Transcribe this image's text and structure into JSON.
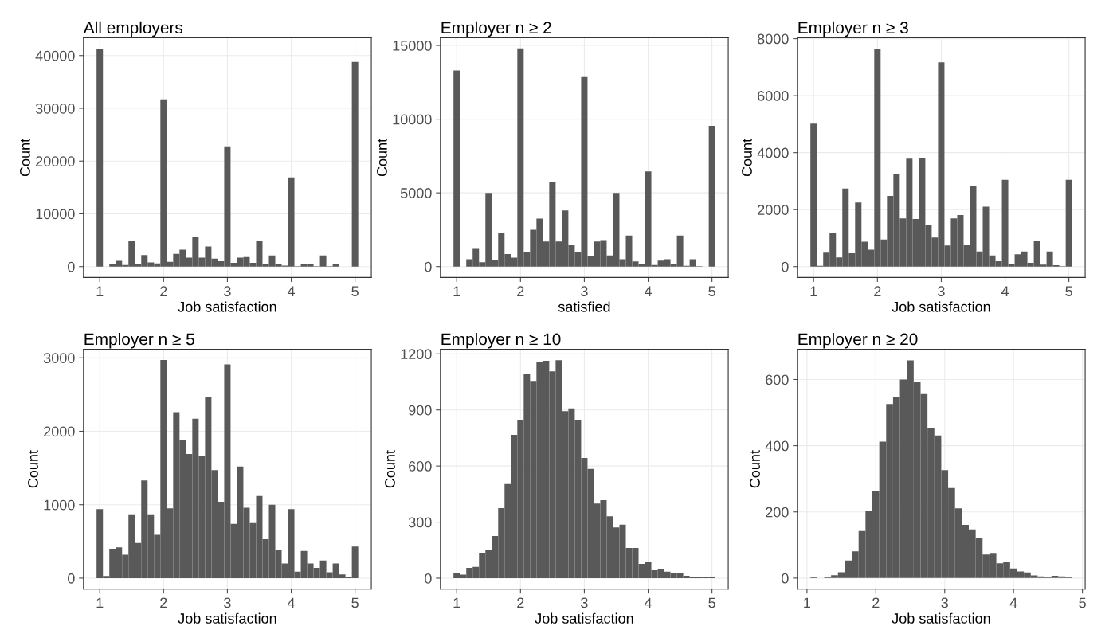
{
  "chart_data": [
    {
      "type": "histogram",
      "title": "All employers",
      "xlabel": "Job satisfaction",
      "ylabel": "Count",
      "color": "#595959",
      "grid": true,
      "xlim": [
        0.745,
        5.255
      ],
      "xticks": [
        1,
        2,
        3,
        4,
        5
      ],
      "ylim": [
        -2065,
        43365
      ],
      "yticks": [
        0,
        10000,
        20000,
        30000,
        40000
      ],
      "bins": [
        0.95,
        1.05,
        1.15,
        1.25,
        1.35,
        1.45,
        1.55,
        1.65,
        1.75,
        1.85,
        1.95,
        2.05,
        2.15,
        2.25,
        2.35,
        2.45,
        2.55,
        2.65,
        2.75,
        2.85,
        2.95,
        3.05,
        3.15,
        3.25,
        3.35,
        3.45,
        3.55,
        3.65,
        3.75,
        3.85,
        3.95,
        4.05,
        4.15,
        4.25,
        4.35,
        4.45,
        4.55,
        4.65,
        4.75,
        4.85,
        4.95,
        5.05
      ],
      "values": [
        41300,
        0,
        500,
        1100,
        300,
        4900,
        400,
        2200,
        800,
        600,
        31700,
        900,
        2400,
        3200,
        1700,
        5600,
        1700,
        3800,
        1500,
        1000,
        22800,
        700,
        1700,
        1800,
        700,
        4900,
        500,
        2100,
        400,
        200,
        16900,
        50,
        400,
        500,
        50,
        2100,
        50,
        500,
        0,
        0,
        38800
      ]
    },
    {
      "type": "histogram",
      "title": "Employer n ≥ 2",
      "xlabel": "satisfied",
      "ylabel": "Count",
      "color": "#595959",
      "grid": true,
      "xlim": [
        0.745,
        5.255
      ],
      "xticks": [
        1,
        2,
        3,
        4,
        5
      ],
      "ylim": [
        -739,
        15519
      ],
      "yticks": [
        0,
        5000,
        10000,
        15000
      ],
      "bins": [
        0.95,
        1.05,
        1.15,
        1.25,
        1.35,
        1.45,
        1.55,
        1.65,
        1.75,
        1.85,
        1.95,
        2.05,
        2.15,
        2.25,
        2.35,
        2.45,
        2.55,
        2.65,
        2.75,
        2.85,
        2.95,
        3.05,
        3.15,
        3.25,
        3.35,
        3.45,
        3.55,
        3.65,
        3.75,
        3.85,
        3.95,
        4.05,
        4.15,
        4.25,
        4.35,
        4.45,
        4.55,
        4.65,
        4.75,
        4.85,
        4.95,
        5.05
      ],
      "values": [
        13300,
        0,
        500,
        1200,
        300,
        5000,
        450,
        2300,
        850,
        600,
        14800,
        950,
        2500,
        3250,
        1700,
        5750,
        1700,
        3800,
        1500,
        1000,
        12850,
        700,
        1700,
        1800,
        750,
        5000,
        500,
        2100,
        350,
        200,
        6450,
        100,
        400,
        500,
        150,
        2100,
        50,
        500,
        20,
        0,
        9550
      ]
    },
    {
      "type": "histogram",
      "title": "Employer n ≥ 3",
      "xlabel": "Job satisfaction",
      "ylabel": "Count",
      "color": "#595959",
      "grid": true,
      "xlim": [
        0.745,
        5.255
      ],
      "xticks": [
        1,
        2,
        3,
        4,
        5
      ],
      "ylim": [
        -382,
        8032
      ],
      "yticks": [
        0,
        2000,
        4000,
        6000,
        8000
      ],
      "bins": [
        0.95,
        1.05,
        1.15,
        1.25,
        1.35,
        1.45,
        1.55,
        1.65,
        1.75,
        1.85,
        1.95,
        2.05,
        2.15,
        2.25,
        2.35,
        2.45,
        2.55,
        2.65,
        2.75,
        2.85,
        2.95,
        3.05,
        3.15,
        3.25,
        3.35,
        3.45,
        3.55,
        3.65,
        3.75,
        3.85,
        3.95,
        4.05,
        4.15,
        4.25,
        4.35,
        4.45,
        4.55,
        4.65,
        4.75,
        4.85,
        4.95,
        5.05
      ],
      "values": [
        5020,
        30,
        490,
        1170,
        320,
        2740,
        470,
        2250,
        870,
        590,
        7650,
        950,
        2480,
        3240,
        1690,
        3790,
        1670,
        3820,
        1460,
        1020,
        7170,
        740,
        1690,
        1810,
        750,
        2820,
        530,
        2100,
        390,
        190,
        3050,
        100,
        430,
        530,
        130,
        910,
        70,
        530,
        50,
        10,
        3050
      ]
    },
    {
      "type": "histogram",
      "title": "Employer n ≥ 5",
      "xlabel": "Job satisfaction",
      "ylabel": "Count",
      "color": "#595959",
      "grid": true,
      "xlim": [
        0.745,
        5.255
      ],
      "xticks": [
        1,
        2,
        3,
        4,
        5
      ],
      "ylim": [
        -148,
        3115
      ],
      "yticks": [
        0,
        1000,
        2000,
        3000
      ],
      "bins": [
        0.95,
        1.05,
        1.15,
        1.25,
        1.35,
        1.45,
        1.55,
        1.65,
        1.75,
        1.85,
        1.95,
        2.05,
        2.15,
        2.25,
        2.35,
        2.45,
        2.55,
        2.65,
        2.75,
        2.85,
        2.95,
        3.05,
        3.15,
        3.25,
        3.35,
        3.45,
        3.55,
        3.65,
        3.75,
        3.85,
        3.95,
        4.05,
        4.15,
        4.25,
        4.35,
        4.45,
        4.55,
        4.65,
        4.75,
        4.85,
        4.95,
        5.05
      ],
      "values": [
        940,
        30,
        400,
        420,
        320,
        870,
        480,
        1330,
        870,
        590,
        2970,
        950,
        2260,
        1880,
        1690,
        2170,
        1660,
        2470,
        1470,
        1040,
        2910,
        740,
        1520,
        960,
        750,
        1120,
        530,
        1000,
        390,
        200,
        940,
        90,
        370,
        200,
        140,
        240,
        80,
        200,
        50,
        10,
        430
      ]
    },
    {
      "type": "histogram",
      "title": "Employer n ≥ 10",
      "xlabel": "Job satisfaction",
      "ylabel": "Count",
      "color": "#595959",
      "grid": true,
      "xlim": [
        0.745,
        5.255
      ],
      "xticks": [
        1,
        2,
        3,
        4,
        5
      ],
      "ylim": [
        -58,
        1224
      ],
      "yticks": [
        0,
        300,
        600,
        900,
        1200
      ],
      "bins": [
        0.95,
        1.05,
        1.15,
        1.25,
        1.35,
        1.45,
        1.55,
        1.65,
        1.75,
        1.85,
        1.95,
        2.05,
        2.15,
        2.25,
        2.35,
        2.45,
        2.55,
        2.65,
        2.75,
        2.85,
        2.95,
        3.05,
        3.15,
        3.25,
        3.35,
        3.45,
        3.55,
        3.65,
        3.75,
        3.85,
        3.95,
        4.05,
        4.15,
        4.25,
        4.35,
        4.45,
        4.55,
        4.65,
        4.75,
        4.85,
        4.95,
        5.05
      ],
      "values": [
        26,
        19,
        55,
        61,
        136,
        153,
        226,
        375,
        504,
        767,
        848,
        1092,
        1055,
        1155,
        1163,
        1106,
        1166,
        893,
        908,
        848,
        643,
        585,
        399,
        417,
        331,
        271,
        286,
        162,
        162,
        77,
        86,
        42,
        47,
        35,
        29,
        29,
        13,
        7,
        4,
        4,
        4
      ]
    },
    {
      "type": "histogram",
      "title": "Employer n ≥ 20",
      "xlabel": "Job satisfaction",
      "ylabel": "Count",
      "color": "#595959",
      "grid": true,
      "xlim": [
        0.86,
        5.04
      ],
      "xticks": [
        1,
        2,
        3,
        4,
        5
      ],
      "ylim": [
        -33,
        691
      ],
      "yticks": [
        0,
        200,
        400,
        600
      ],
      "bins": [
        1.05,
        1.15,
        1.25,
        1.35,
        1.45,
        1.55,
        1.65,
        1.75,
        1.85,
        1.95,
        2.05,
        2.15,
        2.25,
        2.35,
        2.45,
        2.55,
        2.65,
        2.75,
        2.85,
        2.95,
        3.05,
        3.15,
        3.25,
        3.35,
        3.45,
        3.55,
        3.65,
        3.75,
        3.85,
        3.95,
        4.05,
        4.15,
        4.25,
        4.35,
        4.45,
        4.55,
        4.65,
        4.75,
        4.85
      ],
      "values": [
        2,
        0,
        3,
        9,
        18,
        53,
        81,
        142,
        204,
        263,
        412,
        526,
        547,
        600,
        658,
        593,
        556,
        453,
        431,
        326,
        272,
        211,
        161,
        147,
        122,
        71,
        76,
        45,
        49,
        29,
        20,
        17,
        8,
        5,
        2,
        7,
        5,
        2
      ]
    }
  ]
}
